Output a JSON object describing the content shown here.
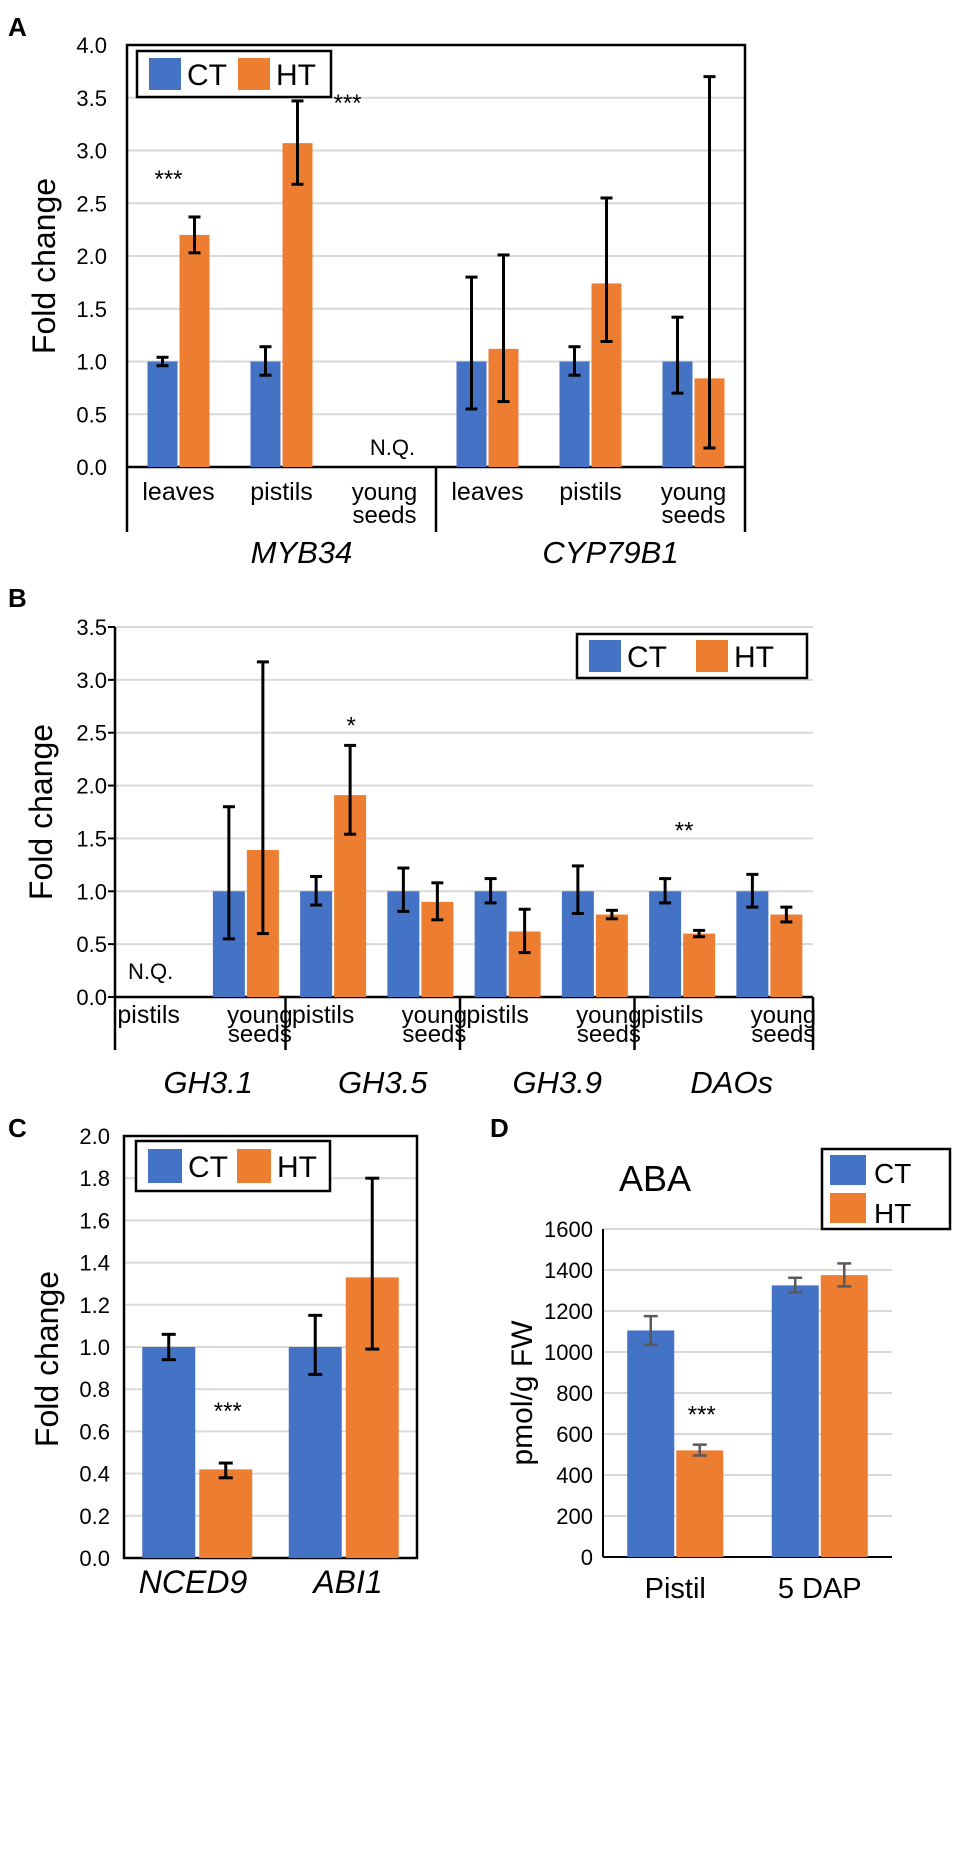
{
  "colors": {
    "ct": "#4472c4",
    "ht": "#ed7d31",
    "axis": "#000000",
    "grid": "#d9d9d9",
    "err": "#000000",
    "err_d": "#595959"
  },
  "chart_data": [
    {
      "id": "A",
      "type": "bar",
      "panel_label": "A",
      "ylabel": "Fold change",
      "ylim": [
        0,
        4.0
      ],
      "yticks": [
        "0.0",
        "0.5",
        "1.0",
        "1.5",
        "2.0",
        "2.5",
        "3.0",
        "3.5",
        "4.0"
      ],
      "legend": [
        "CT",
        "HT"
      ],
      "groups": [
        {
          "gene": "MYB34",
          "categories": [
            {
              "label": [
                "leaves"
              ],
              "CT": 1.0,
              "CT_err": [
                0.96,
                1.04
              ],
              "HT": 2.2,
              "HT_err": [
                2.03,
                2.37
              ],
              "sig": "***"
            },
            {
              "label": [
                "pistils"
              ],
              "CT": 1.0,
              "CT_err": [
                0.87,
                1.14
              ],
              "HT": 3.07,
              "HT_err": [
                2.68,
                3.47
              ],
              "sig": "***"
            },
            {
              "label": [
                "young",
                "seeds"
              ],
              "CT": null,
              "HT": null,
              "note": "N.Q."
            }
          ]
        },
        {
          "gene": "CYP79B1",
          "categories": [
            {
              "label": [
                "leaves"
              ],
              "CT": 1.0,
              "CT_err": [
                0.55,
                1.8
              ],
              "HT": 1.12,
              "HT_err": [
                0.62,
                2.01
              ]
            },
            {
              "label": [
                "pistils"
              ],
              "CT": 1.0,
              "CT_err": [
                0.87,
                1.14
              ],
              "HT": 1.74,
              "HT_err": [
                1.19,
                2.55
              ]
            },
            {
              "label": [
                "young",
                "seeds"
              ],
              "CT": 1.0,
              "CT_err": [
                0.7,
                1.42
              ],
              "HT": 0.84,
              "HT_err": [
                0.18,
                3.7
              ]
            }
          ]
        }
      ]
    },
    {
      "id": "B",
      "type": "bar",
      "panel_label": "B",
      "ylabel": "Fold change",
      "ylim": [
        0,
        3.5
      ],
      "yticks": [
        "0.0",
        "0.5",
        "1.0",
        "1.5",
        "2.0",
        "2.5",
        "3.0",
        "3.5"
      ],
      "legend": [
        "CT",
        "HT"
      ],
      "groups": [
        {
          "gene": "GH3.1",
          "categories": [
            {
              "label": [
                "pistils"
              ],
              "CT": null,
              "HT": null,
              "note": "N.Q."
            },
            {
              "label": [
                "young",
                "seeds"
              ],
              "CT": 1.0,
              "CT_err": [
                0.55,
                1.8
              ],
              "HT": 1.39,
              "HT_err": [
                0.6,
                3.17
              ]
            }
          ]
        },
        {
          "gene": "GH3.5",
          "categories": [
            {
              "label": [
                "pistils"
              ],
              "CT": 1.0,
              "CT_err": [
                0.87,
                1.14
              ],
              "HT": 1.91,
              "HT_err": [
                1.54,
                2.38
              ],
              "sig": "*"
            },
            {
              "label": [
                "young",
                "seeds"
              ],
              "CT": 1.0,
              "CT_err": [
                0.81,
                1.22
              ],
              "HT": 0.9,
              "HT_err": [
                0.73,
                1.08
              ]
            }
          ]
        },
        {
          "gene": "GH3.9",
          "categories": [
            {
              "label": [
                "pistils"
              ],
              "CT": 1.0,
              "CT_err": [
                0.89,
                1.12
              ],
              "HT": 0.62,
              "HT_err": [
                0.42,
                0.83
              ]
            },
            {
              "label": [
                "young",
                "seeds"
              ],
              "CT": 1.0,
              "CT_err": [
                0.79,
                1.24
              ],
              "HT": 0.78,
              "HT_err": [
                0.74,
                0.82
              ]
            }
          ]
        },
        {
          "gene": "DAOs",
          "categories": [
            {
              "label": [
                "pistils"
              ],
              "CT": 1.0,
              "CT_err": [
                0.89,
                1.12
              ],
              "HT": 0.6,
              "HT_err": [
                0.57,
                0.63
              ],
              "sig": "**"
            },
            {
              "label": [
                "young",
                "seeds"
              ],
              "CT": 1.0,
              "CT_err": [
                0.85,
                1.16
              ],
              "HT": 0.78,
              "HT_err": [
                0.71,
                0.85
              ]
            }
          ]
        }
      ]
    },
    {
      "id": "C",
      "type": "bar",
      "panel_label": "C",
      "ylabel": "Fold change",
      "ylim": [
        0,
        2.0
      ],
      "yticks": [
        "0.0",
        "0.2",
        "0.4",
        "0.6",
        "0.8",
        "1.0",
        "1.2",
        "1.4",
        "1.6",
        "1.8",
        "2.0"
      ],
      "legend": [
        "CT",
        "HT"
      ],
      "categories": [
        {
          "label": "NCED9",
          "CT": 1.0,
          "CT_err": [
            0.94,
            1.06
          ],
          "HT": 0.42,
          "HT_err": [
            0.38,
            0.45
          ],
          "sig": "***"
        },
        {
          "label": "ABI1",
          "CT": 1.0,
          "CT_err": [
            0.87,
            1.15
          ],
          "HT": 1.33,
          "HT_err": [
            0.99,
            1.8
          ]
        }
      ]
    },
    {
      "id": "D",
      "type": "bar",
      "panel_label": "D",
      "title": "ABA",
      "ylabel": "pmol/g FW",
      "ylim": [
        0,
        1600
      ],
      "yticks": [
        "0",
        "200",
        "400",
        "600",
        "800",
        "1000",
        "1200",
        "1400",
        "1600"
      ],
      "legend": [
        "CT",
        "HT"
      ],
      "categories": [
        {
          "label": "Pistil",
          "CT": 1105,
          "CT_err": [
            1035,
            1175
          ],
          "HT": 520,
          "HT_err": [
            495,
            548
          ],
          "sig": "***"
        },
        {
          "label": "5 DAP",
          "CT": 1325,
          "CT_err": [
            1290,
            1362
          ],
          "HT": 1375,
          "HT_err": [
            1320,
            1432
          ]
        }
      ]
    }
  ]
}
